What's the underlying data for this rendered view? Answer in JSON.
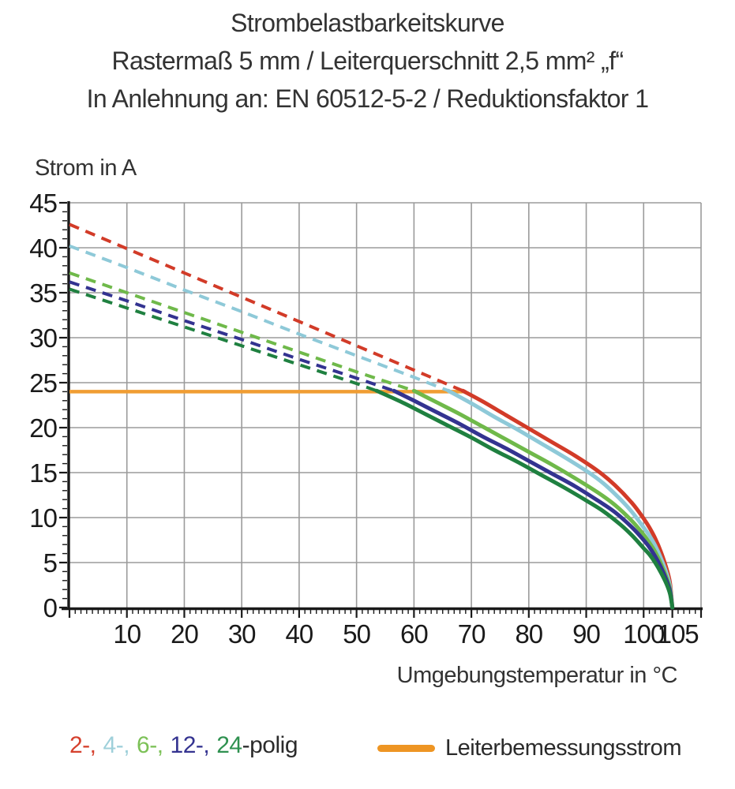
{
  "title": {
    "line1": "Strombelastbarkeitskurve",
    "line2": "Rastermaß 5 mm / Leiterquerschnitt 2,5 mm² „f“",
    "line3": "In Anlehnung an: EN 60512-5-2 / Reduktionsfaktor 1"
  },
  "chart_data": {
    "type": "line",
    "title": "Strombelastbarkeitskurve",
    "xlabel": "Umgebungstemperatur in °C",
    "ylabel": "Strom in A",
    "xlim": [
      0,
      110
    ],
    "ylim": [
      0,
      45
    ],
    "grid": true,
    "x_major_ticks": [
      10,
      20,
      30,
      40,
      50,
      60,
      70,
      80,
      90,
      100,
      105
    ],
    "x_minor_step": 1,
    "y_major_ticks": [
      45,
      40,
      35,
      30,
      25,
      20,
      15,
      10,
      5,
      0
    ],
    "y_minor_step": 1,
    "grid_color": "#9b9b9b",
    "axis_color": "#1a1a1a",
    "tick_label_color": "#1a1a1a",
    "rated_current": {
      "label": "Leiterbemessungsstrom",
      "value_A": 24,
      "x_range_C": [
        0,
        68.5
      ],
      "color": "#f09d33"
    },
    "series": [
      {
        "name": "2-polig",
        "color": "#d23b28",
        "dashed_points": [
          [
            0,
            42.6
          ],
          [
            10,
            39.9
          ],
          [
            20,
            37.2
          ],
          [
            30,
            34.5
          ],
          [
            40,
            31.8
          ],
          [
            50,
            29.1
          ],
          [
            60,
            26.4
          ],
          [
            68.5,
            24.1
          ]
        ],
        "solid_points": [
          [
            68.5,
            24.1
          ],
          [
            72,
            22.9
          ],
          [
            76,
            21.4
          ],
          [
            80,
            19.9
          ],
          [
            84,
            18.4
          ],
          [
            88,
            16.9
          ],
          [
            92,
            15.2
          ],
          [
            95,
            13.6
          ],
          [
            98,
            11.6
          ],
          [
            100,
            9.9
          ],
          [
            101,
            8.9
          ],
          [
            102,
            7.7
          ],
          [
            103,
            6.2
          ],
          [
            104,
            4.3
          ],
          [
            104.6,
            2.7
          ],
          [
            105,
            0
          ]
        ]
      },
      {
        "name": "4-polig",
        "color": "#8ec9d8",
        "dashed_points": [
          [
            0,
            40.2
          ],
          [
            10,
            37.8
          ],
          [
            20,
            35.3
          ],
          [
            30,
            32.9
          ],
          [
            40,
            30.4
          ],
          [
            50,
            28.0
          ],
          [
            60,
            25.6
          ],
          [
            66,
            24.1
          ]
        ],
        "solid_points": [
          [
            66,
            24.1
          ],
          [
            70,
            22.7
          ],
          [
            74,
            21.2
          ],
          [
            78,
            19.8
          ],
          [
            82,
            18.3
          ],
          [
            86,
            16.8
          ],
          [
            90,
            15.2
          ],
          [
            93,
            13.8
          ],
          [
            96,
            12.0
          ],
          [
            98,
            10.6
          ],
          [
            100,
            8.9
          ],
          [
            101,
            8.0
          ],
          [
            102,
            6.9
          ],
          [
            103,
            5.5
          ],
          [
            104,
            3.8
          ],
          [
            104.6,
            2.3
          ],
          [
            105,
            0
          ]
        ]
      },
      {
        "name": "6-polig",
        "color": "#6fb94a",
        "dashed_points": [
          [
            0,
            37.2
          ],
          [
            10,
            35.0
          ],
          [
            20,
            32.8
          ],
          [
            30,
            30.6
          ],
          [
            40,
            28.4
          ],
          [
            50,
            26.2
          ],
          [
            60,
            24.1
          ]
        ],
        "solid_points": [
          [
            60,
            24.1
          ],
          [
            64,
            22.8
          ],
          [
            68,
            21.5
          ],
          [
            72,
            20.1
          ],
          [
            76,
            18.7
          ],
          [
            80,
            17.3
          ],
          [
            84,
            15.9
          ],
          [
            88,
            14.4
          ],
          [
            92,
            12.8
          ],
          [
            95,
            11.4
          ],
          [
            98,
            9.6
          ],
          [
            100,
            8.1
          ],
          [
            101,
            7.2
          ],
          [
            102,
            6.2
          ],
          [
            103,
            4.9
          ],
          [
            104,
            3.3
          ],
          [
            104.6,
            2.0
          ],
          [
            105,
            0
          ]
        ]
      },
      {
        "name": "12-polig",
        "color": "#333390",
        "dashed_points": [
          [
            0,
            36.2
          ],
          [
            10,
            34.1
          ],
          [
            20,
            31.9
          ],
          [
            30,
            29.8
          ],
          [
            40,
            27.6
          ],
          [
            50,
            25.5
          ],
          [
            56.5,
            24.1
          ]
        ],
        "solid_points": [
          [
            56.5,
            24.1
          ],
          [
            60,
            23.0
          ],
          [
            64,
            21.7
          ],
          [
            68,
            20.4
          ],
          [
            72,
            19.0
          ],
          [
            76,
            17.7
          ],
          [
            80,
            16.3
          ],
          [
            84,
            14.9
          ],
          [
            88,
            13.5
          ],
          [
            92,
            11.9
          ],
          [
            95,
            10.6
          ],
          [
            98,
            8.9
          ],
          [
            100,
            7.5
          ],
          [
            101,
            6.7
          ],
          [
            102,
            5.7
          ],
          [
            103,
            4.5
          ],
          [
            104,
            3.0
          ],
          [
            104.6,
            1.8
          ],
          [
            105,
            0
          ]
        ]
      },
      {
        "name": "24-polig",
        "color": "#1f8040",
        "dashed_points": [
          [
            0,
            35.4
          ],
          [
            10,
            33.3
          ],
          [
            20,
            31.2
          ],
          [
            30,
            29.1
          ],
          [
            40,
            27.0
          ],
          [
            50,
            24.9
          ],
          [
            53.5,
            24.1
          ]
        ],
        "solid_points": [
          [
            53.5,
            24.1
          ],
          [
            58,
            22.8
          ],
          [
            62,
            21.5
          ],
          [
            66,
            20.2
          ],
          [
            70,
            18.9
          ],
          [
            74,
            17.5
          ],
          [
            78,
            16.2
          ],
          [
            82,
            14.8
          ],
          [
            86,
            13.4
          ],
          [
            90,
            11.9
          ],
          [
            93,
            10.7
          ],
          [
            96,
            9.2
          ],
          [
            98,
            8.0
          ],
          [
            100,
            6.6
          ],
          [
            101,
            5.9
          ],
          [
            102,
            5.0
          ],
          [
            103,
            3.9
          ],
          [
            104,
            2.6
          ],
          [
            104.6,
            1.5
          ],
          [
            105,
            0
          ]
        ]
      }
    ]
  },
  "legend": {
    "poles": [
      {
        "label": "2-,",
        "color": "#d5402d"
      },
      {
        "label": "4-,",
        "color": "#9fd0da"
      },
      {
        "label": "6-,",
        "color": "#7cc157"
      },
      {
        "label": "12-,",
        "color": "#343390"
      },
      {
        "label": "24",
        "color": "#2f9150"
      }
    ],
    "suffix": "-polig",
    "rated_label": "Leiterbemessungsstrom",
    "rated_color": "#ee9523"
  }
}
